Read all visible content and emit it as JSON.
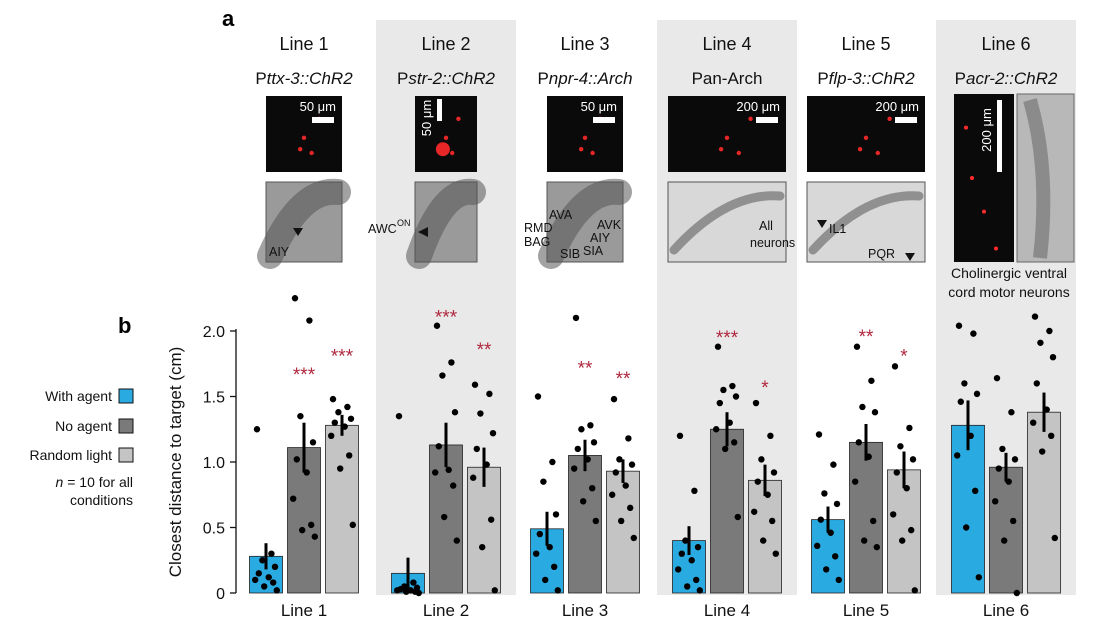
{
  "panels": {
    "a": "a",
    "b": "b"
  },
  "header": {
    "lines": [
      {
        "title": "Line 1",
        "prefix": "P",
        "gene": "ttx-3::ChR2",
        "scale": "50 μm",
        "scale_vertical": false,
        "neurons": [
          "AIY"
        ]
      },
      {
        "title": "Line 2",
        "prefix": "P",
        "gene": "str-2::ChR2",
        "scale": "50 μm",
        "scale_vertical": true,
        "neurons": [
          "AWC"
        ],
        "neuron_sup": "ON"
      },
      {
        "title": "Line 3",
        "prefix": "P",
        "gene": "npr-4::Arch",
        "scale": "50 μm",
        "scale_vertical": false,
        "neurons": [
          "AVA",
          "RMD",
          "BAG",
          "AVK",
          "AIY",
          "SIA",
          "SIB"
        ]
      },
      {
        "title": "Line 4",
        "prefix": "",
        "gene": "Pan-Arch",
        "gene_italic": false,
        "scale": "200 μm",
        "scale_vertical": false,
        "neurons": [
          "All",
          "neurons"
        ]
      },
      {
        "title": "Line 5",
        "prefix": "P",
        "gene": "flp-3::ChR2",
        "scale": "200 μm",
        "scale_vertical": false,
        "neurons": [
          "IL1",
          "PQR"
        ]
      },
      {
        "title": "Line 6",
        "prefix": "P",
        "gene": "acr-2::ChR2",
        "scale": "200 μm",
        "scale_vertical": true,
        "caption": [
          "Cholinergic ventral",
          "cord motor neurons"
        ]
      }
    ]
  },
  "legend": {
    "items": [
      {
        "label": "With agent",
        "color": "#29abe2"
      },
      {
        "label": "No agent",
        "color": "#7a7a7a"
      },
      {
        "label": "Random light",
        "color": "#c4c4c4"
      }
    ],
    "note_n": "n",
    "note_rest": " = 10 for all",
    "note_line2": "conditions"
  },
  "chart_data": {
    "type": "bar",
    "ylabel": "Closest distance to target (cm)",
    "ylim": [
      0,
      2.0
    ],
    "yticks": [
      "0",
      "0.5",
      "1.0",
      "1.5",
      "2.0"
    ],
    "categories": [
      "Line 1",
      "Line 2",
      "Line 3",
      "Line 4",
      "Line 5",
      "Line 6"
    ],
    "series": [
      {
        "name": "With agent",
        "color": "#29abe2",
        "values": [
          0.28,
          0.15,
          0.49,
          0.4,
          0.56,
          1.28
        ],
        "errors": [
          0.1,
          0.12,
          0.13,
          0.11,
          0.1,
          0.19
        ],
        "points": [
          [
            1.25,
            0.3,
            0.25,
            0.2,
            0.15,
            0.12,
            0.1,
            0.08,
            0.05,
            0.02
          ],
          [
            1.35,
            0.08,
            0.05,
            0.04,
            0.03,
            0.02,
            0.02,
            0.01,
            0.01,
            0.0
          ],
          [
            1.5,
            1.0,
            0.85,
            0.6,
            0.45,
            0.35,
            0.3,
            0.2,
            0.1,
            0.02
          ],
          [
            1.2,
            0.78,
            0.4,
            0.35,
            0.3,
            0.25,
            0.18,
            0.1,
            0.05,
            0.02
          ],
          [
            1.21,
            0.98,
            0.76,
            0.68,
            0.56,
            0.46,
            0.36,
            0.28,
            0.18,
            0.1
          ],
          [
            2.04,
            1.98,
            1.6,
            1.52,
            1.46,
            1.2,
            1.05,
            0.78,
            0.5,
            0.12
          ]
        ]
      },
      {
        "name": "No agent",
        "color": "#7a7a7a",
        "values": [
          1.11,
          1.13,
          1.05,
          1.25,
          1.15,
          0.96
        ],
        "errors": [
          0.19,
          0.17,
          0.12,
          0.13,
          0.14,
          0.11
        ],
        "points": [
          [
            2.25,
            2.08,
            1.35,
            1.15,
            1.02,
            0.92,
            0.72,
            0.52,
            0.48,
            0.43
          ],
          [
            2.04,
            1.76,
            1.66,
            1.38,
            1.12,
            0.94,
            0.92,
            0.82,
            0.58,
            0.4
          ],
          [
            2.1,
            1.28,
            1.25,
            1.15,
            1.1,
            1.02,
            0.95,
            0.8,
            0.7,
            0.55
          ],
          [
            1.88,
            1.58,
            1.55,
            1.5,
            1.45,
            1.3,
            1.25,
            1.15,
            1.1,
            0.58
          ],
          [
            1.88,
            1.62,
            1.42,
            1.38,
            1.15,
            1.04,
            0.85,
            0.55,
            0.4,
            0.35
          ],
          [
            1.64,
            1.38,
            1.1,
            1.02,
            0.95,
            0.85,
            0.7,
            0.55,
            0.4,
            0.0
          ]
        ]
      },
      {
        "name": "Random light",
        "color": "#c4c4c4",
        "values": [
          1.28,
          0.96,
          0.93,
          0.86,
          0.94,
          1.38
        ],
        "errors": [
          0.08,
          0.15,
          0.09,
          0.12,
          0.14,
          0.15
        ],
        "points": [
          [
            1.48,
            1.42,
            1.38,
            1.33,
            1.3,
            1.27,
            1.2,
            1.05,
            0.95,
            0.52
          ],
          [
            1.59,
            1.52,
            1.37,
            1.22,
            1.1,
            0.98,
            0.88,
            0.56,
            0.35,
            0.02
          ],
          [
            1.48,
            1.18,
            1.02,
            0.98,
            0.92,
            0.82,
            0.75,
            0.65,
            0.55,
            0.42
          ],
          [
            1.45,
            1.2,
            1.02,
            0.92,
            0.85,
            0.75,
            0.62,
            0.55,
            0.4,
            0.3
          ],
          [
            1.73,
            1.26,
            1.12,
            1.02,
            0.92,
            0.8,
            0.6,
            0.48,
            0.4,
            0.02
          ],
          [
            2.11,
            2.0,
            1.91,
            1.8,
            1.6,
            1.4,
            1.3,
            1.2,
            1.08,
            0.42
          ]
        ]
      }
    ],
    "significance": [
      {
        "category": 0,
        "series": 1,
        "label": "***",
        "y": 1.68
      },
      {
        "category": 0,
        "series": 2,
        "label": "***",
        "y": 1.82
      },
      {
        "category": 1,
        "series": 1,
        "label": "***",
        "y": 2.12
      },
      {
        "category": 1,
        "series": 2,
        "label": "**",
        "y": 1.87
      },
      {
        "category": 2,
        "series": 1,
        "label": "**",
        "y": 1.73
      },
      {
        "category": 2,
        "series": 2,
        "label": "**",
        "y": 1.65
      },
      {
        "category": 3,
        "series": 1,
        "label": "***",
        "y": 1.96
      },
      {
        "category": 3,
        "series": 2,
        "label": "*",
        "y": 1.58
      },
      {
        "category": 4,
        "series": 1,
        "label": "**",
        "y": 1.97
      },
      {
        "category": 4,
        "series": 2,
        "label": "*",
        "y": 1.82
      }
    ],
    "shaded_groups": [
      1,
      3,
      5
    ]
  }
}
